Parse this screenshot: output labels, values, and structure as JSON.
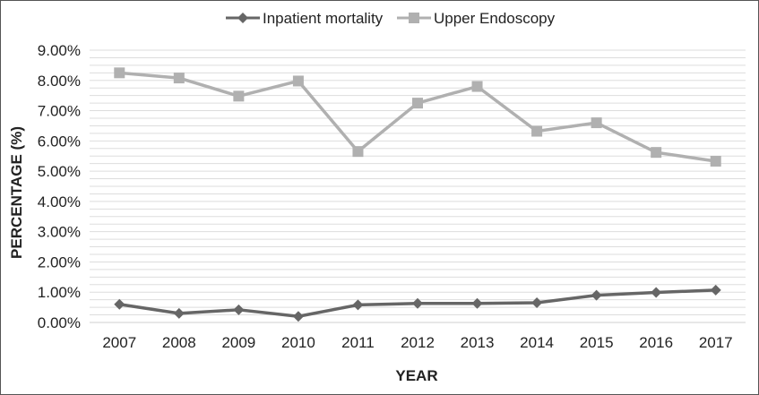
{
  "chart_data": {
    "type": "line",
    "title": "",
    "xlabel": "YEAR",
    "ylabel": "PERCENTAGE (%)",
    "ylim": [
      0,
      9
    ],
    "y_tick_step": 1,
    "y_gridlines": "every 0.25%",
    "y_tick_labels": [
      "0.00%",
      "1.00%",
      "2.00%",
      "3.00%",
      "4.00%",
      "5.00%",
      "6.00%",
      "7.00%",
      "8.00%",
      "9.00%"
    ],
    "categories": [
      "2007",
      "2008",
      "2009",
      "2010",
      "2011",
      "2012",
      "2013",
      "2014",
      "2015",
      "2016",
      "2017"
    ],
    "legend_position": "top-center",
    "series": [
      {
        "name": "Inpatient mortality",
        "marker": "diamond",
        "color": "#666666",
        "values": [
          0.6,
          0.3,
          0.42,
          0.2,
          0.58,
          0.63,
          0.63,
          0.65,
          0.9,
          0.99,
          1.07
        ]
      },
      {
        "name": "Upper Endoscopy",
        "marker": "square",
        "color": "#b0b0b0",
        "values": [
          8.25,
          8.08,
          7.48,
          7.98,
          5.65,
          7.25,
          7.8,
          6.32,
          6.6,
          5.62,
          5.33
        ]
      }
    ]
  }
}
